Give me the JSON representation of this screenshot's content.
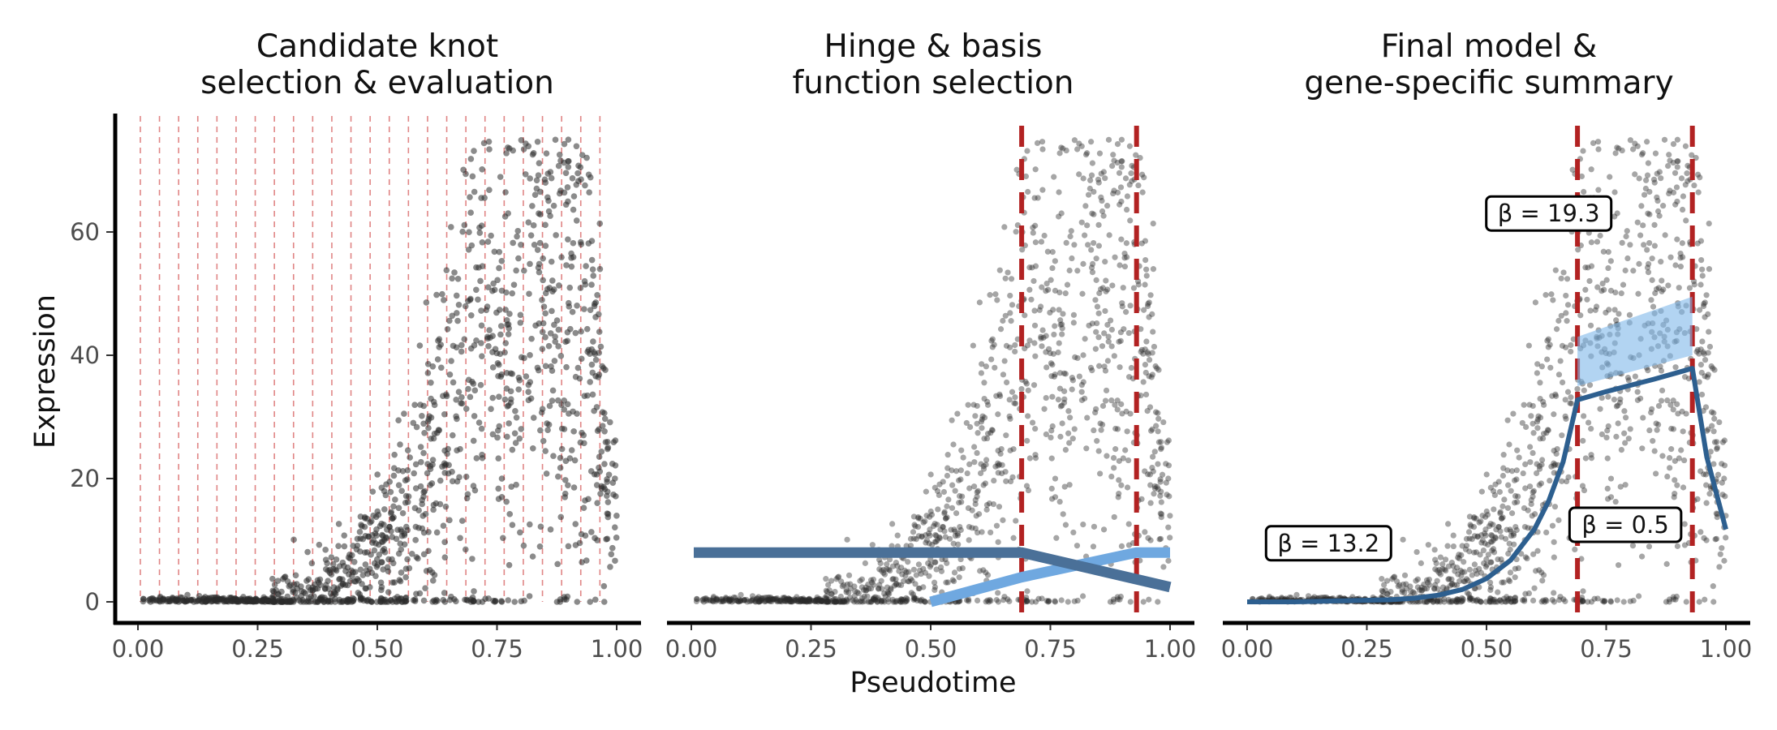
{
  "figure": {
    "xlabel": "Pseudotime",
    "ylabel": "Expression",
    "colors": {
      "points": "#2b2b2b",
      "knot_candidates": "#e08585",
      "knot_selected": "#b22222",
      "basis_dark": "#4a7098",
      "basis_light": "#6fa8e0",
      "fit_line": "#2d5f8f",
      "ribbon": "#7fb7ea"
    }
  },
  "chart_data": [
    {
      "type": "scatter",
      "title_line1": "Candidate knot",
      "title_line2": "selection & evaluation",
      "xlim": [
        0,
        1
      ],
      "ylim": [
        0,
        75
      ],
      "x_ticks": [
        "0.00",
        "0.25",
        "0.50",
        "0.75",
        "1.00"
      ],
      "y_ticks": [
        "0",
        "20",
        "40",
        "60"
      ],
      "x_tick_values": [
        0,
        0.25,
        0.5,
        0.75,
        1.0
      ],
      "y_tick_values": [
        0,
        20,
        40,
        60
      ],
      "candidate_knots": [
        0.005,
        0.045,
        0.085,
        0.125,
        0.165,
        0.205,
        0.245,
        0.285,
        0.325,
        0.365,
        0.405,
        0.445,
        0.485,
        0.525,
        0.565,
        0.605,
        0.645,
        0.685,
        0.725,
        0.765,
        0.805,
        0.845,
        0.885,
        0.925,
        0.965
      ],
      "grid": false
    },
    {
      "type": "line",
      "title_line1": "Hinge & basis",
      "title_line2": "function selection",
      "xlim": [
        0,
        1
      ],
      "ylim": [
        0,
        75
      ],
      "x_ticks": [
        "0.00",
        "0.25",
        "0.50",
        "0.75",
        "1.00"
      ],
      "x_tick_values": [
        0,
        0.25,
        0.5,
        0.75,
        1.0
      ],
      "selected_knots": [
        0.69,
        0.93
      ],
      "series": [
        {
          "x": [
            0.005,
            0.69,
            1.0
          ],
          "y": [
            10,
            10,
            3
          ]
        },
        {
          "x": [
            0.5,
            0.69,
            0.93,
            1.0
          ],
          "y": [
            0,
            5,
            10,
            10
          ]
        }
      ],
      "grid": false
    },
    {
      "type": "line",
      "title_line1": "Final model &",
      "title_line2": "gene-specific summary",
      "xlim": [
        0,
        1
      ],
      "ylim": [
        0,
        75
      ],
      "x_ticks": [
        "0.00",
        "0.25",
        "0.50",
        "0.75",
        "1.00"
      ],
      "x_tick_values": [
        0,
        0.25,
        0.5,
        0.75,
        1.0
      ],
      "selected_knots": [
        0.69,
        0.93
      ],
      "fit": {
        "x": [
          0.0,
          0.1,
          0.2,
          0.3,
          0.35,
          0.4,
          0.45,
          0.5,
          0.55,
          0.6,
          0.63,
          0.66,
          0.69,
          0.75,
          0.8,
          0.85,
          0.9,
          0.93,
          0.96,
          1.0
        ],
        "y": [
          0,
          0,
          0.2,
          0.4,
          0.7,
          1.3,
          2.4,
          4.5,
          8.0,
          14.0,
          19.5,
          27.0,
          39.0,
          40.6,
          41.8,
          43.0,
          44.3,
          45.1,
          28.0,
          14.0
        ]
      },
      "ribbon": {
        "x": [
          0.69,
          0.93
        ],
        "lower": [
          35.0,
          40.0
        ],
        "upper": [
          43.0,
          49.5
        ]
      },
      "annotations": [
        {
          "label": "β = 13.2",
          "x": 0.17,
          "y": 9.5
        },
        {
          "label": "β = 19.3",
          "x": 0.63,
          "y": 63.0
        },
        {
          "label": "β = 0.5",
          "x": 0.79,
          "y": 12.5
        }
      ],
      "grid": false
    }
  ]
}
